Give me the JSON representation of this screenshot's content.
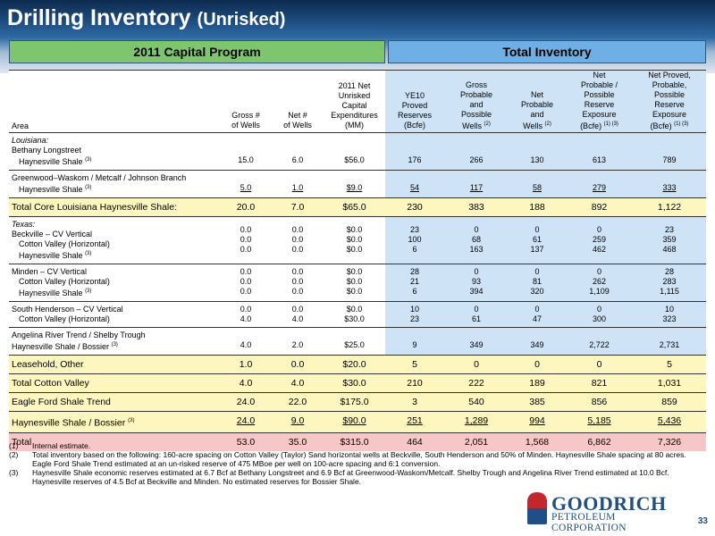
{
  "title": "Drilling Inventory",
  "subtitle": "(Unrisked)",
  "bands": {
    "capital": "2011 Capital Program",
    "inventory": "Total Inventory"
  },
  "columns": {
    "area": "Area",
    "gross_wells": [
      "Gross #",
      "of Wells"
    ],
    "net_wells": [
      "Net #",
      "of Wells"
    ],
    "capex": [
      "2011 Net",
      "Unrisked",
      "Capital",
      "Expenditures",
      "(MM)"
    ],
    "ye10": [
      "YE10",
      "Proved",
      "Reserves",
      "(Bcfe)"
    ],
    "gross_pp": [
      "Gross",
      "Probable",
      "and",
      "Possible",
      "Wells"
    ],
    "gross_pp_note": "(2)",
    "net_pp": [
      "Net",
      "Probable",
      "and",
      "Possible",
      "Wells"
    ],
    "net_pp_note": "(2)",
    "net_pp_res": [
      "Net",
      "Probable /",
      "Possible",
      "Reserve",
      "Exposure",
      "(Bcfe)"
    ],
    "net_pp_res_note": "(1) (3)",
    "net_ppp": [
      "Net Proved,",
      "Probable,",
      "Possible",
      "Reserve",
      "Exposure",
      "(Bcfe)"
    ],
    "net_ppp_note": "(1) (3)"
  },
  "rows": {
    "louisiana": {
      "area": [
        "Louisiana:",
        "Bethany Longstreet",
        "Haynesville Shale"
      ],
      "note": "(3)",
      "gross": "15.0",
      "net": "6.0",
      "capex": "$56.0",
      "ye10": "176",
      "gpp": "266",
      "npp": "130",
      "nppr": "613",
      "nppp": "789"
    },
    "greenwood": {
      "area": [
        "Greenwood–Waskom / Metcalf / Johnson Branch",
        "Haynesville Shale"
      ],
      "note": "(3)",
      "gross": "5.0",
      "net": "1.0",
      "capex": "$9.0",
      "ye10": "54",
      "gpp": "117",
      "npp": "58",
      "nppr": "279",
      "nppp": "333"
    },
    "core_la": {
      "area": "Total Core Louisiana Haynesville Shale:",
      "gross": "20.0",
      "net": "7.0",
      "capex": "$65.0",
      "ye10": "230",
      "gpp": "383",
      "npp": "188",
      "nppr": "892",
      "nppp": "1,122"
    },
    "texas": {
      "area": [
        "Texas:",
        "Beckville – CV Vertical",
        "Cotton Valley (Horizontal)",
        "Haynesville Shale"
      ],
      "note": "(3)",
      "gross": [
        "0.0",
        "0.0",
        "0.0"
      ],
      "net": [
        "0.0",
        "0.0",
        "0.0"
      ],
      "capex": [
        "$0.0",
        "$0.0",
        "$0.0"
      ],
      "ye10": [
        "23",
        "100",
        "6"
      ],
      "gpp": [
        "0",
        "68",
        "163"
      ],
      "npp": [
        "0",
        "61",
        "137"
      ],
      "nppr": [
        "0",
        "259",
        "462"
      ],
      "nppp": [
        "23",
        "359",
        "468"
      ]
    },
    "minden": {
      "area": [
        "Minden – CV Vertical",
        "Cotton Valley (Horizontal)",
        "Haynesville Shale"
      ],
      "note": "(3)",
      "gross": [
        "0.0",
        "0.0",
        "0.0"
      ],
      "net": [
        "0.0",
        "0.0",
        "0.0"
      ],
      "capex": [
        "$0.0",
        "$0.0",
        "$0.0"
      ],
      "ye10": [
        "28",
        "21",
        "6"
      ],
      "gpp": [
        "0",
        "93",
        "394"
      ],
      "npp": [
        "0",
        "81",
        "320"
      ],
      "nppr": [
        "0",
        "262",
        "1,109"
      ],
      "nppp": [
        "28",
        "283",
        "1,115"
      ]
    },
    "south_henderson": {
      "area": [
        "South Henderson – CV Vertical",
        "Cotton Valley (Horizontal)"
      ],
      "gross": [
        "0.0",
        "4.0"
      ],
      "net": [
        "0.0",
        "4.0"
      ],
      "capex": [
        "$0.0",
        "$30.0"
      ],
      "ye10": [
        "10",
        "23"
      ],
      "gpp": [
        "0",
        "61"
      ],
      "npp": [
        "0",
        "47"
      ],
      "nppr": [
        "0",
        "300"
      ],
      "nppp": [
        "10",
        "323"
      ]
    },
    "angelina": {
      "area": [
        "Angelina River Trend / Shelby Trough",
        "Haynesville Shale / Bossier"
      ],
      "note": "(3)",
      "gross": "4.0",
      "net": "2.0",
      "capex": "$25.0",
      "ye10": "9",
      "gpp": "349",
      "npp": "349",
      "nppr": "2,722",
      "nppp": "2,731"
    },
    "leasehold": {
      "area": "Leasehold, Other",
      "gross": "1.0",
      "net": "0.0",
      "capex": "$20.0",
      "ye10": "5",
      "gpp": "0",
      "npp": "0",
      "nppr": "0",
      "nppp": "5"
    },
    "total_cv": {
      "area": "Total Cotton Valley",
      "gross": "4.0",
      "net": "4.0",
      "capex": "$30.0",
      "ye10": "210",
      "gpp": "222",
      "npp": "189",
      "nppr": "821",
      "nppp": "1,031"
    },
    "eagle_ford": {
      "area": "Eagle Ford Shale Trend",
      "gross": "24.0",
      "net": "22.0",
      "capex": "$175.0",
      "ye10": "3",
      "gpp": "540",
      "npp": "385",
      "nppr": "856",
      "nppp": "859"
    },
    "haynesville": {
      "area": "Haynesville Shale / Bossier",
      "note": "(3)",
      "gross": "24.0",
      "net": "9.0",
      "capex": "$90.0",
      "ye10": "251",
      "gpp": "1,289",
      "npp": "994",
      "nppr": "5,185",
      "nppp": "5,436"
    },
    "total": {
      "area": "Total",
      "gross": "53.0",
      "net": "35.0",
      "capex": "$315.0",
      "ye10": "464",
      "gpp": "2,051",
      "npp": "1,568",
      "nppr": "6,862",
      "nppp": "7,326"
    }
  },
  "footnotes": [
    {
      "num": "(1)",
      "text": "Internal estimate."
    },
    {
      "num": "(2)",
      "text": "Total inventory based on the following: 160-acre spacing on Cotton Valley (Taylor) Sand horizontal wells at Beckville, South Henderson and 50% of Minden.  Haynesville Shale spacing at 80 acres.  Eagle Ford Shale Trend estimated at an un-risked reserve of 475 MBoe per well on 100-acre spacing and 6:1 conversion."
    },
    {
      "num": "(3)",
      "text": "Haynesville Shale economic reserves estimated at 6.7 Bcf at Bethany Longstreet and 6.9 Bcf at Greenwood-Waskom/Metcalf.  Shelby Trough and Angelina River Trend estimated at 10.0 Bcf.  Haynesville reserves of 4.5 Bcf at Beckville and Minden.  No estimated reserves for Bossier Shale."
    }
  ],
  "logo": {
    "name": "GOODRICH",
    "corp": "PETROLEUM CORPORATION"
  },
  "page_number": "33"
}
